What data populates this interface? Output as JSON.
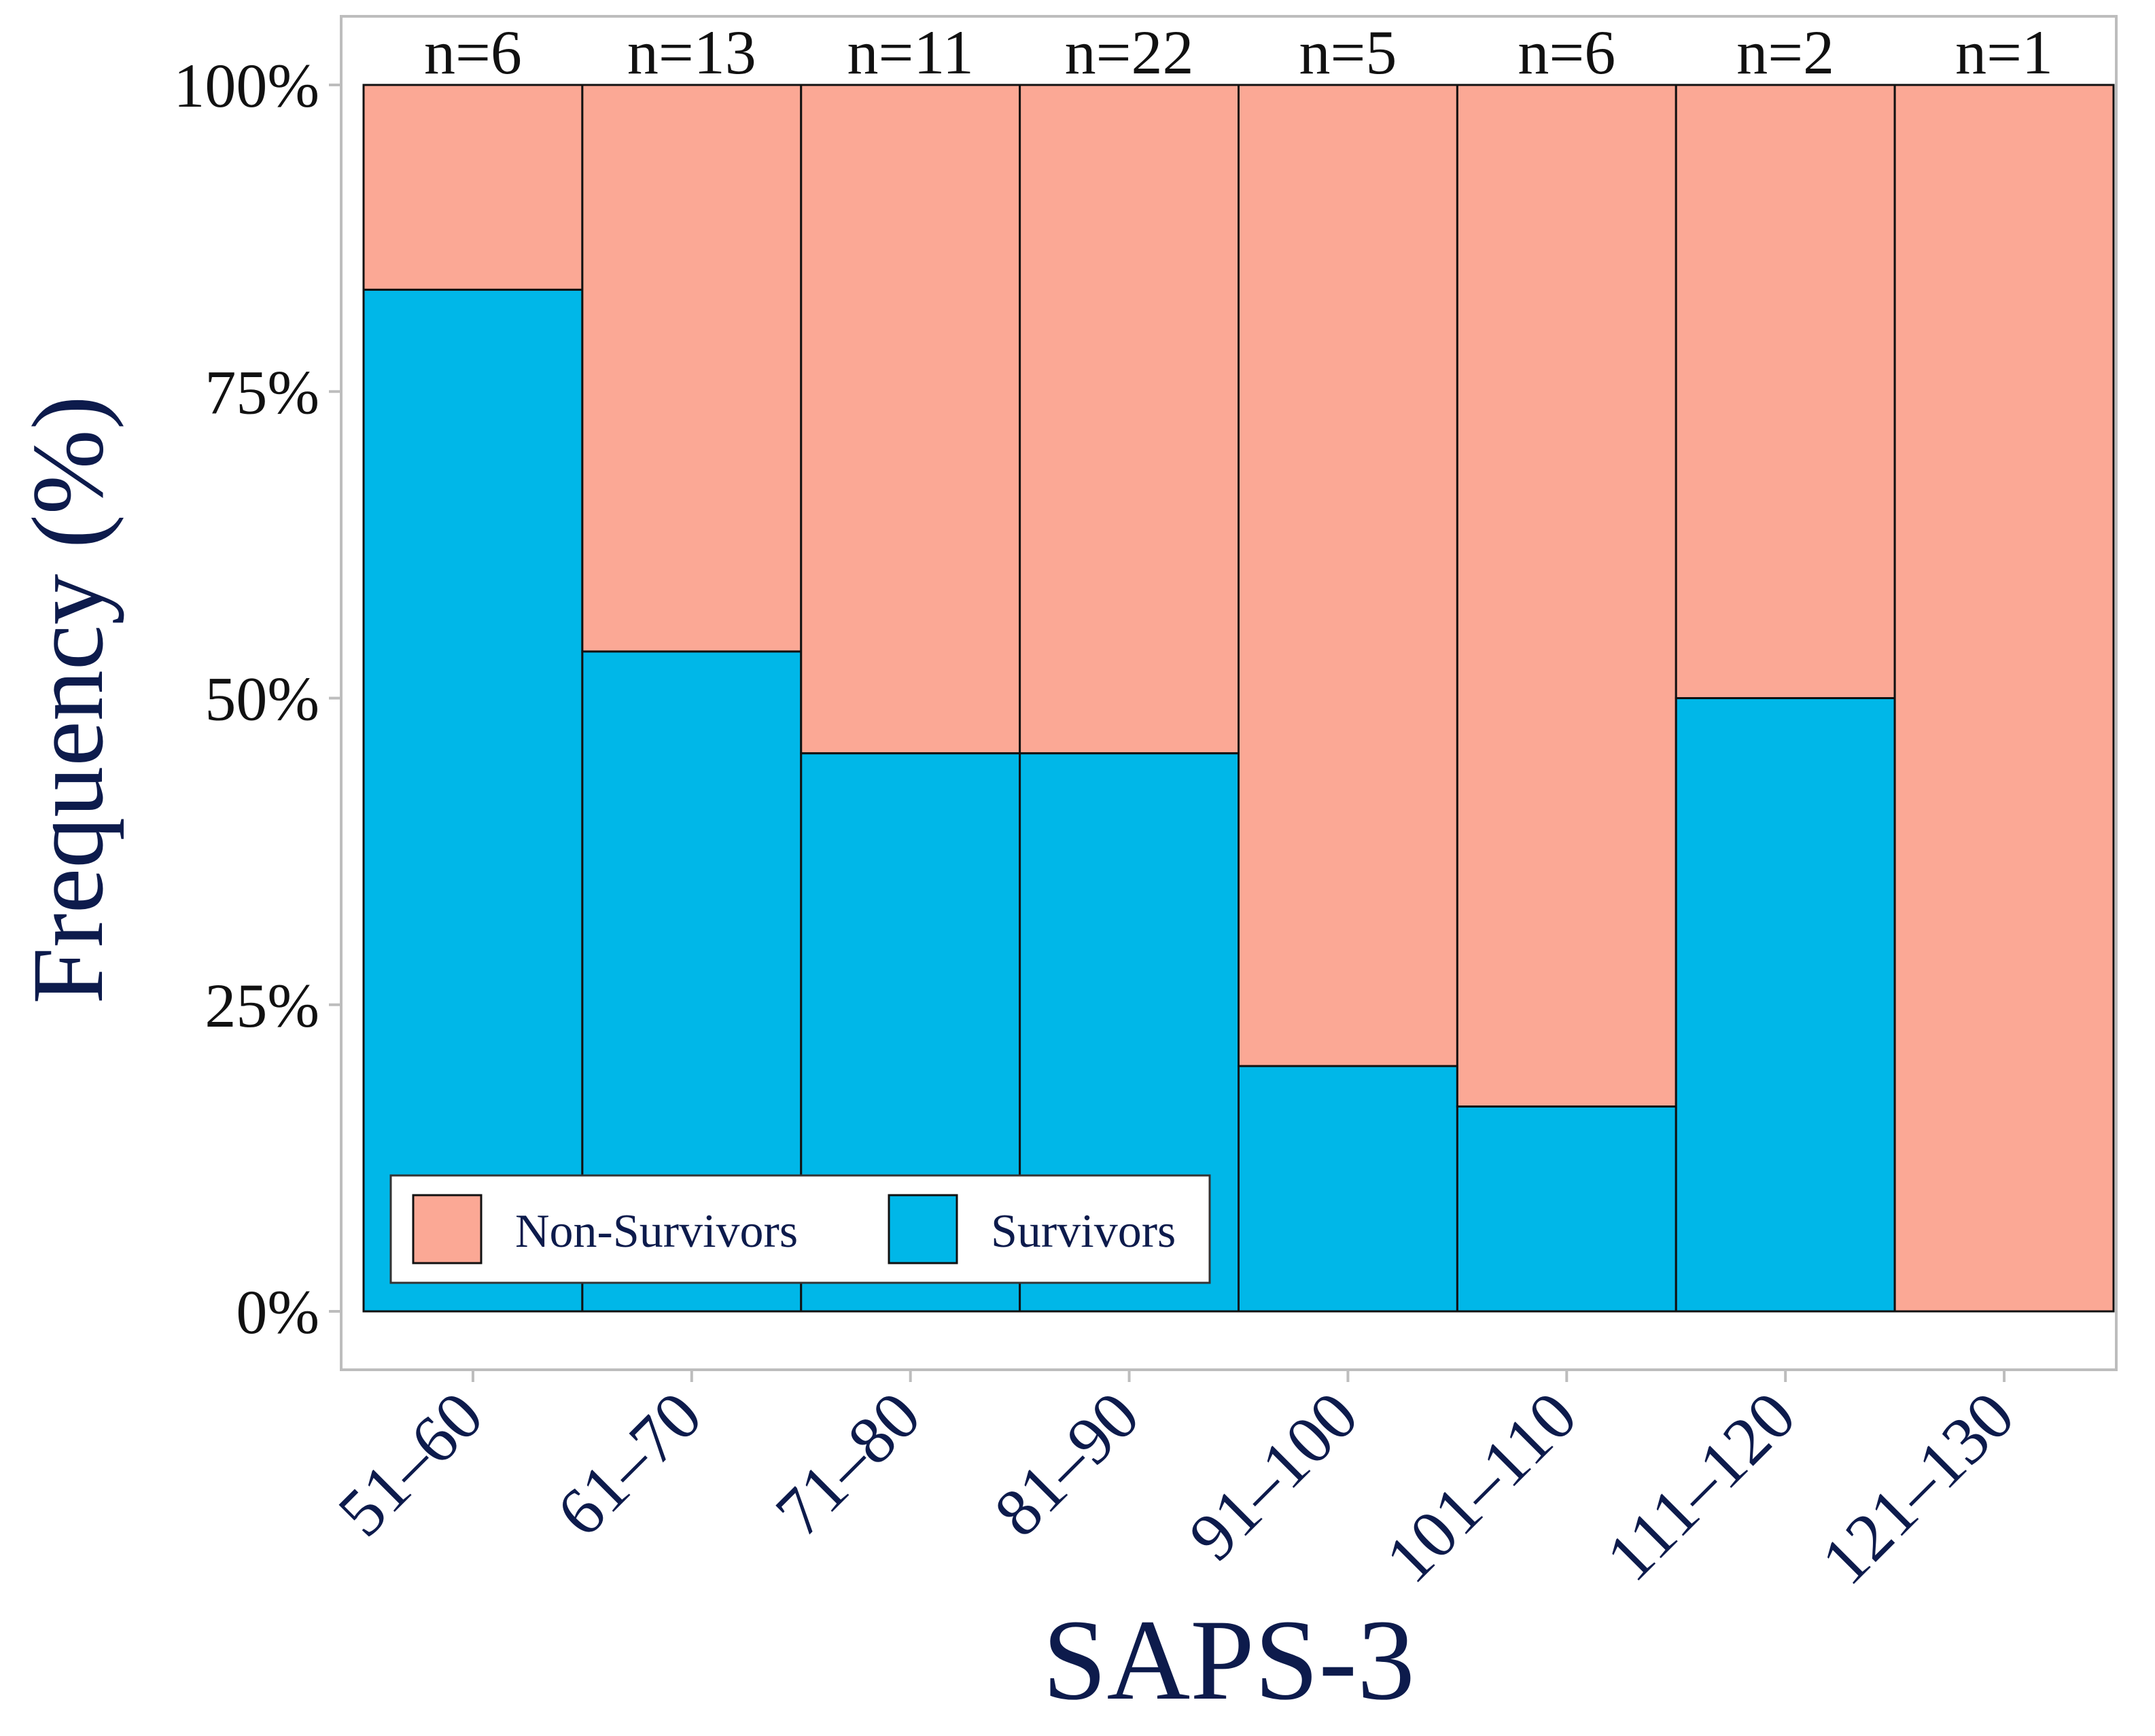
{
  "chart_data": {
    "type": "bar",
    "stacked": true,
    "normalized_percent": true,
    "title": "",
    "xlabel": "SAPS-3",
    "ylabel": "Frequency (%)",
    "ylim": [
      0,
      100
    ],
    "yticks": [
      0,
      25,
      50,
      75,
      100
    ],
    "ytick_labels": [
      "0%",
      "25%",
      "50%",
      "75%",
      "100%"
    ],
    "categories": [
      "51–60",
      "61–70",
      "71–80",
      "81–90",
      "91–100",
      "101–110",
      "111–120",
      "121–130"
    ],
    "counts": [
      6,
      13,
      11,
      22,
      5,
      6,
      2,
      1
    ],
    "count_labels": [
      "n=6",
      "n=13",
      "n=11",
      "n=22",
      "n=5",
      "n=6",
      "n=2",
      "n=1"
    ],
    "series": [
      {
        "name": "Survivors",
        "color": "#00B7E8",
        "values": [
          83.3,
          53.8,
          45.5,
          45.5,
          20.0,
          16.7,
          50.0,
          0
        ]
      },
      {
        "name": "Non-Survivors",
        "color": "#FBA895",
        "values": [
          16.7,
          46.2,
          54.5,
          54.5,
          80.0,
          83.3,
          50.0,
          100
        ]
      }
    ],
    "legend": {
      "position": "bottom-left",
      "entries": [
        "Non-Survivors",
        "Survivors"
      ]
    },
    "grid": false
  },
  "colors": {
    "axis_text": "#111111",
    "label_text": "#0d1b4c",
    "frame": "#bdbdbd",
    "bar_border": "#111111"
  }
}
